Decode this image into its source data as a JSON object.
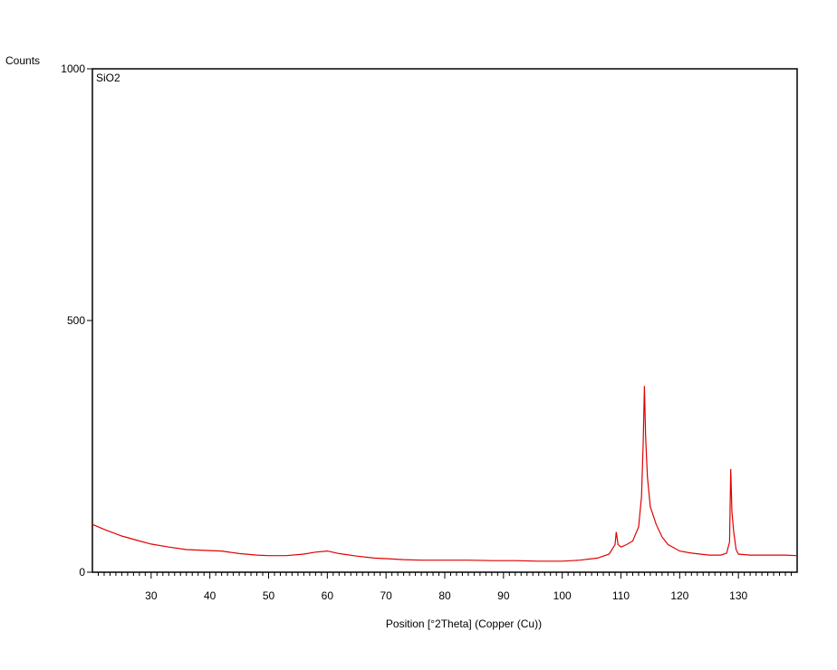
{
  "chart_data": {
    "type": "line",
    "title": "",
    "xlabel": "Position [°2Theta] (Copper (Cu))",
    "ylabel": "Counts",
    "annotation": "SiO2",
    "xlim": [
      20,
      140
    ],
    "ylim": [
      0,
      1000
    ],
    "xticks": [
      30,
      40,
      50,
      60,
      70,
      80,
      90,
      100,
      110,
      120,
      130
    ],
    "yticks": [
      0,
      500,
      1000
    ],
    "grid": false,
    "series_color": "#e00000",
    "series": [
      {
        "x": [
          20,
          22,
          25,
          28,
          30,
          33,
          36,
          40,
          42,
          45,
          48,
          50,
          53,
          56,
          58,
          60,
          62,
          65,
          68,
          70,
          73,
          76,
          80,
          84,
          88,
          92,
          96,
          100,
          103,
          106,
          108,
          109,
          109.2,
          109.5,
          110,
          111,
          112,
          113,
          113.5,
          113.8,
          114,
          114.2,
          114.5,
          115,
          116,
          117,
          118,
          120,
          122,
          125,
          127,
          128,
          128.5,
          128.7,
          128.9,
          129.2,
          129.6,
          130,
          132,
          135,
          138,
          140
        ],
        "y": [
          95,
          85,
          72,
          62,
          56,
          50,
          45,
          43,
          42,
          37,
          34,
          33,
          33,
          36,
          40,
          42,
          37,
          32,
          28,
          27,
          25,
          24,
          24,
          24,
          23,
          23,
          22,
          22,
          24,
          28,
          36,
          55,
          80,
          55,
          50,
          55,
          62,
          90,
          150,
          260,
          370,
          270,
          190,
          130,
          95,
          70,
          55,
          42,
          38,
          34,
          34,
          38,
          60,
          205,
          120,
          80,
          45,
          36,
          34,
          34,
          34,
          33
        ]
      }
    ]
  }
}
